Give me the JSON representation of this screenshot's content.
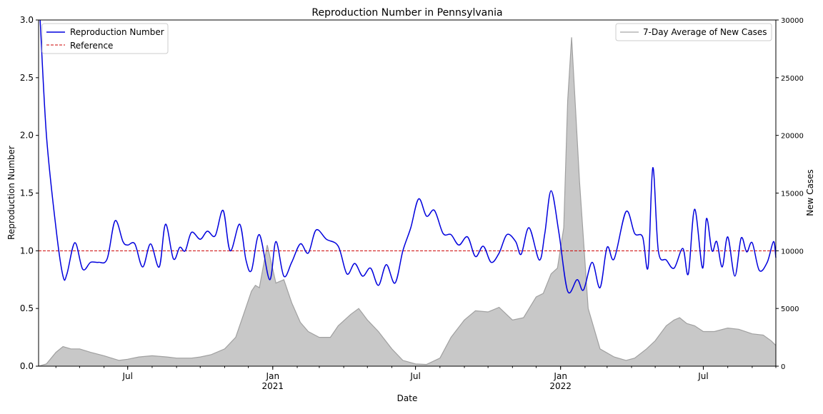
{
  "chart_data": {
    "type": "line",
    "title": "Reproduction Number in Pennsylvania",
    "xlabel": "Date",
    "ylabel_left": "Reproduction Number",
    "ylabel_right": "New Cases",
    "x_range": [
      "2020-03-10",
      "2022-10-01"
    ],
    "ylim_left": [
      0.0,
      3.0
    ],
    "ylim_right": [
      0,
      30000
    ],
    "yticks_left": [
      "0.0",
      "0.5",
      "1.0",
      "1.5",
      "2.0",
      "2.5",
      "3.0"
    ],
    "yticks_right": [
      "0",
      "5000",
      "10000",
      "15000",
      "20000",
      "25000",
      "30000"
    ],
    "xticks": [
      {
        "date": "2020-07-01",
        "label": "Jul",
        "sublabel": ""
      },
      {
        "date": "2021-01-01",
        "label": "Jan",
        "sublabel": "2021"
      },
      {
        "date": "2021-07-01",
        "label": "Jul",
        "sublabel": ""
      },
      {
        "date": "2022-01-01",
        "label": "Jan",
        "sublabel": "2022"
      },
      {
        "date": "2022-07-01",
        "label": "Jul",
        "sublabel": ""
      }
    ],
    "legend_left": {
      "placement": "top-left",
      "entries": [
        "Reproduction Number",
        "Reference"
      ]
    },
    "legend_right": {
      "placement": "top-right",
      "entries": [
        "7-Day Average of New Cases"
      ]
    },
    "reference_value": 1.0,
    "colors": {
      "rt": "#0000dd",
      "reference": "#cc0000",
      "cases_fill": "#c8c8c8",
      "cases_line": "#a0a0a0"
    },
    "series": [
      {
        "name": "Reproduction Number",
        "axis": "left",
        "x": [
          "2020-03-12",
          "2020-03-20",
          "2020-04-01",
          "2020-04-10",
          "2020-04-15",
          "2020-04-25",
          "2020-05-05",
          "2020-05-15",
          "2020-05-25",
          "2020-06-05",
          "2020-06-15",
          "2020-06-25",
          "2020-07-01",
          "2020-07-10",
          "2020-07-20",
          "2020-07-30",
          "2020-08-10",
          "2020-08-18",
          "2020-08-28",
          "2020-09-05",
          "2020-09-12",
          "2020-09-20",
          "2020-10-01",
          "2020-10-10",
          "2020-10-20",
          "2020-10-30",
          "2020-11-08",
          "2020-11-20",
          "2020-11-28",
          "2020-12-05",
          "2020-12-15",
          "2020-12-28",
          "2021-01-05",
          "2021-01-15",
          "2021-01-25",
          "2021-02-05",
          "2021-02-15",
          "2021-02-25",
          "2021-03-10",
          "2021-03-25",
          "2021-04-05",
          "2021-04-15",
          "2021-04-25",
          "2021-05-05",
          "2021-05-15",
          "2021-05-25",
          "2021-06-05",
          "2021-06-15",
          "2021-06-25",
          "2021-07-05",
          "2021-07-15",
          "2021-07-25",
          "2021-08-05",
          "2021-08-15",
          "2021-08-25",
          "2021-09-05",
          "2021-09-15",
          "2021-09-25",
          "2021-10-05",
          "2021-10-15",
          "2021-10-25",
          "2021-11-05",
          "2021-11-12",
          "2021-11-22",
          "2021-12-05",
          "2021-12-12",
          "2021-12-20",
          "2021-12-30",
          "2022-01-10",
          "2022-01-22",
          "2022-01-30",
          "2022-02-10",
          "2022-02-20",
          "2022-03-01",
          "2022-03-10",
          "2022-03-25",
          "2022-04-05",
          "2022-04-15",
          "2022-04-22",
          "2022-04-28",
          "2022-05-05",
          "2022-05-15",
          "2022-05-25",
          "2022-06-05",
          "2022-06-12",
          "2022-06-20",
          "2022-06-30",
          "2022-07-05",
          "2022-07-12",
          "2022-07-18",
          "2022-07-25",
          "2022-08-01",
          "2022-08-10",
          "2022-08-18",
          "2022-08-25",
          "2022-09-01",
          "2022-09-10",
          "2022-09-20",
          "2022-09-28",
          "2022-10-01"
        ],
        "values": [
          3.0,
          2.0,
          1.2,
          0.78,
          0.8,
          1.07,
          0.84,
          0.9,
          0.9,
          0.93,
          1.26,
          1.08,
          1.05,
          1.06,
          0.86,
          1.06,
          0.86,
          1.23,
          0.93,
          1.03,
          1.0,
          1.16,
          1.1,
          1.17,
          1.13,
          1.35,
          1.0,
          1.23,
          0.92,
          0.83,
          1.14,
          0.75,
          1.08,
          0.78,
          0.9,
          1.06,
          0.98,
          1.18,
          1.1,
          1.04,
          0.8,
          0.89,
          0.78,
          0.85,
          0.7,
          0.88,
          0.72,
          1.0,
          1.2,
          1.45,
          1.3,
          1.35,
          1.15,
          1.14,
          1.05,
          1.12,
          0.95,
          1.04,
          0.9,
          0.98,
          1.14,
          1.08,
          0.97,
          1.2,
          0.92,
          1.15,
          1.52,
          1.15,
          0.65,
          0.75,
          0.66,
          0.9,
          0.68,
          1.03,
          0.93,
          1.34,
          1.15,
          1.12,
          0.86,
          1.72,
          1.0,
          0.92,
          0.85,
          1.02,
          0.8,
          1.36,
          0.85,
          1.28,
          1.0,
          1.08,
          0.86,
          1.12,
          0.78,
          1.11,
          0.99,
          1.07,
          0.83,
          0.9,
          1.08,
          0.94
        ]
      },
      {
        "name": "7-Day Average of New Cases",
        "axis": "right",
        "x": [
          "2020-03-10",
          "2020-03-20",
          "2020-04-01",
          "2020-04-10",
          "2020-04-20",
          "2020-05-01",
          "2020-05-15",
          "2020-06-01",
          "2020-06-20",
          "2020-07-01",
          "2020-07-15",
          "2020-08-01",
          "2020-08-20",
          "2020-09-01",
          "2020-09-20",
          "2020-10-01",
          "2020-10-15",
          "2020-11-01",
          "2020-11-15",
          "2020-11-25",
          "2020-12-05",
          "2020-12-10",
          "2020-12-15",
          "2020-12-25",
          "2021-01-05",
          "2021-01-15",
          "2021-01-25",
          "2021-02-05",
          "2021-02-15",
          "2021-03-01",
          "2021-03-15",
          "2021-03-25",
          "2021-04-10",
          "2021-04-20",
          "2021-05-01",
          "2021-05-15",
          "2021-06-01",
          "2021-06-15",
          "2021-07-01",
          "2021-07-15",
          "2021-08-01",
          "2021-08-15",
          "2021-09-01",
          "2021-09-15",
          "2021-10-01",
          "2021-10-15",
          "2021-11-01",
          "2021-11-15",
          "2021-12-01",
          "2021-12-10",
          "2021-12-20",
          "2021-12-28",
          "2022-01-05",
          "2022-01-10",
          "2022-01-15",
          "2022-01-25",
          "2022-02-05",
          "2022-02-20",
          "2022-03-10",
          "2022-03-25",
          "2022-04-05",
          "2022-04-20",
          "2022-05-01",
          "2022-05-15",
          "2022-05-25",
          "2022-06-01",
          "2022-06-10",
          "2022-06-20",
          "2022-07-01",
          "2022-07-15",
          "2022-08-01",
          "2022-08-15",
          "2022-09-01",
          "2022-09-15",
          "2022-09-25",
          "2022-10-01"
        ],
        "values": [
          0,
          200,
          1200,
          1700,
          1500,
          1500,
          1200,
          900,
          500,
          600,
          800,
          900,
          800,
          700,
          700,
          800,
          1000,
          1500,
          2500,
          4500,
          6500,
          7000,
          6800,
          10500,
          7200,
          7500,
          5500,
          3800,
          3000,
          2500,
          2500,
          3500,
          4500,
          5000,
          4000,
          3000,
          1500,
          500,
          200,
          150,
          700,
          2500,
          4000,
          4800,
          4700,
          5100,
          4000,
          4200,
          6000,
          6300,
          8000,
          8500,
          12000,
          23000,
          28500,
          16000,
          5000,
          1500,
          800,
          500,
          700,
          1500,
          2200,
          3500,
          4000,
          4200,
          3700,
          3500,
          3000,
          3000,
          3300,
          3200,
          2800,
          2700,
          2200,
          1800
        ]
      }
    ]
  }
}
